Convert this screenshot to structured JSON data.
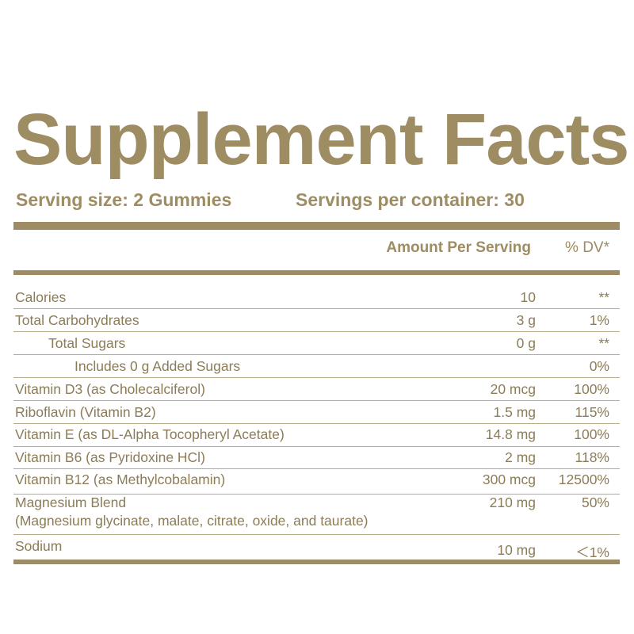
{
  "title": "Supplement Facts",
  "serving_size": "Serving size: 2 Gummies",
  "servings_per_container": "Servings per container: 30",
  "columns": {
    "amount": "Amount Per Serving",
    "dv": "% DV*"
  },
  "colors": {
    "accent": "#9e8c63",
    "text": "#8c7c57"
  },
  "rows": [
    {
      "name": "Calories",
      "amount": "10",
      "dv": "**"
    },
    {
      "name": "Total Carbohydrates",
      "amount": "3 g",
      "dv": "1%"
    },
    {
      "name": "Total Sugars",
      "amount": "0 g",
      "dv": "**"
    },
    {
      "name": "Includes 0 g Added Sugars",
      "amount": "",
      "dv": "0%"
    },
    {
      "name": "Vitamin D3 (as Cholecalciferol)",
      "amount": "20 mcg",
      "dv": "100%"
    },
    {
      "name": "Riboflavin (Vitamin B2)",
      "amount": "1.5 mg",
      "dv": "115%"
    },
    {
      "name": "Vitamin E (as DL-Alpha Tocopheryl Acetate)",
      "amount": "14.8 mg",
      "dv": "100%"
    },
    {
      "name": "Vitamin B6 (as Pyridoxine HCl)",
      "amount": "2 mg",
      "dv": "118%"
    },
    {
      "name": "Vitamin B12 (as Methylcobalamin)",
      "amount": "300 mcg",
      "dv": "12500%"
    },
    {
      "name": "Magnesium Blend",
      "detail": "(Magnesium glycinate, malate, citrate, oxide, and taurate)",
      "amount": "210 mg",
      "dv": "50%"
    },
    {
      "name": "Sodium",
      "amount": "10 mg",
      "dv": "＜1%"
    }
  ]
}
